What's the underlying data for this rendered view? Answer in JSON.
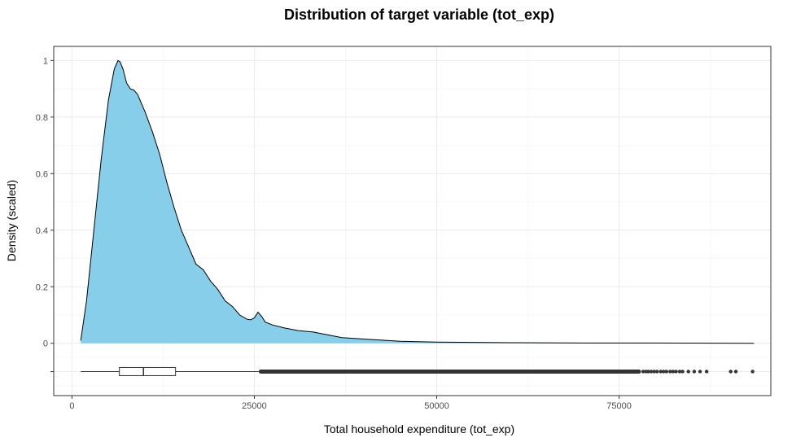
{
  "chart_data": {
    "type": "area",
    "title": "Distribution of target variable (tot_exp)",
    "xlabel": "Total household expenditure (tot_exp)",
    "ylabel": "Density (scaled)",
    "xlim": [
      -2500,
      95800
    ],
    "ylim": [
      -0.185,
      1.05
    ],
    "x_ticks": [
      0,
      25000,
      50000,
      75000
    ],
    "x_tick_labels": [
      "0",
      "25000",
      "50000",
      "75000"
    ],
    "y_ticks": [
      0,
      0.2,
      0.4,
      0.6,
      0.8,
      1
    ],
    "y_tick_labels": [
      "0",
      "0.2",
      "0.4",
      "0.6",
      "0.8",
      "1"
    ],
    "grid": true,
    "fill_color": "#87CEEB",
    "series": [
      {
        "x": [
          1200,
          2000,
          3000,
          4000,
          5000,
          5800,
          6300,
          6600,
          7000,
          7500,
          8000,
          8500,
          9000,
          9500,
          10000,
          11000,
          12000,
          13000,
          14000,
          15000,
          16000,
          17000,
          18000,
          19000,
          20000,
          21000,
          22000,
          23000,
          24000,
          24500,
          25000,
          25500,
          26000,
          26500,
          27500,
          29000,
          31000,
          33000,
          35000,
          37000,
          40000,
          45000,
          50000,
          60000,
          70000,
          80000,
          93500
        ],
        "y": [
          0.01,
          0.15,
          0.4,
          0.65,
          0.86,
          0.97,
          1.0,
          0.995,
          0.97,
          0.92,
          0.9,
          0.895,
          0.88,
          0.85,
          0.82,
          0.75,
          0.67,
          0.57,
          0.48,
          0.4,
          0.34,
          0.28,
          0.26,
          0.22,
          0.19,
          0.15,
          0.13,
          0.1,
          0.085,
          0.083,
          0.09,
          0.11,
          0.095,
          0.075,
          0.065,
          0.055,
          0.045,
          0.04,
          0.03,
          0.02,
          0.015,
          0.007,
          0.004,
          0.002,
          0.001,
          0.001,
          0.0
        ]
      }
    ],
    "boxplot": {
      "y": -0.1,
      "min": 1200,
      "q1": 6500,
      "median": 9800,
      "q3": 14200,
      "whisker_high": 25600,
      "outliers_dense_range": [
        25600,
        78000
      ],
      "outliers": [
        78300,
        78700,
        79000,
        79400,
        79800,
        80200,
        80700,
        81100,
        81500,
        82000,
        82400,
        82800,
        83300,
        83700,
        84500,
        85300,
        86100,
        87000,
        90300,
        91000,
        93300
      ]
    }
  }
}
